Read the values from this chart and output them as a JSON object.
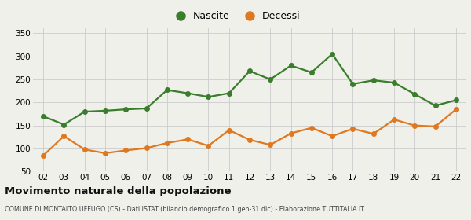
{
  "years": [
    "02",
    "03",
    "04",
    "05",
    "06",
    "07",
    "08",
    "09",
    "10",
    "11",
    "12",
    "13",
    "14",
    "15",
    "16",
    "17",
    "18",
    "19",
    "20",
    "21",
    "22"
  ],
  "nascite": [
    170,
    152,
    180,
    182,
    185,
    187,
    227,
    220,
    212,
    220,
    268,
    250,
    280,
    265,
    305,
    240,
    248,
    243,
    218,
    193,
    205
  ],
  "decessi": [
    85,
    127,
    98,
    90,
    96,
    101,
    112,
    120,
    106,
    140,
    119,
    108,
    133,
    145,
    127,
    143,
    132,
    163,
    150,
    148,
    185
  ],
  "nascite_color": "#3a7d2c",
  "decessi_color": "#e07820",
  "background_color": "#f0f0eb",
  "grid_color": "#cccccc",
  "ylim": [
    50,
    360
  ],
  "yticks": [
    50,
    100,
    150,
    200,
    250,
    300,
    350
  ],
  "title": "Movimento naturale della popolazione",
  "subtitle": "COMUNE DI MONTALTO UFFUGO (CS) - Dati ISTAT (bilancio demografico 1 gen-31 dic) - Elaborazione TUTTITALIA.IT",
  "legend_nascite": "Nascite",
  "legend_decessi": "Decessi",
  "marker_size": 4,
  "line_width": 1.6
}
